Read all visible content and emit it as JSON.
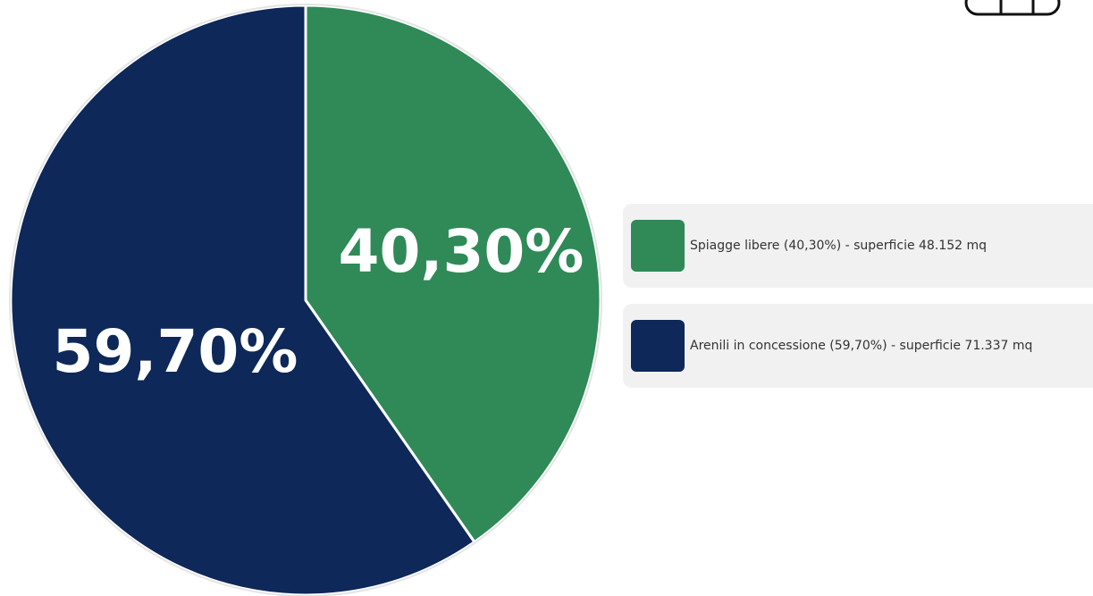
{
  "chart_data": {
    "type": "pie",
    "slices": [
      {
        "label": "Spiagge libere (40,30%) - superficie 48.152 mq",
        "value": 40.3,
        "value_label": "40,30%",
        "color": "#2f8a58"
      },
      {
        "label": "Arenili in concessione (59,70%) - superficie 71.337 mq",
        "value": 59.7,
        "value_label": "59,70%",
        "color": "#0d2859"
      }
    ],
    "start_angle_deg": 0,
    "direction": "clockwise",
    "legend_placement": "right"
  },
  "icons": {
    "corner": "menu-icon"
  }
}
